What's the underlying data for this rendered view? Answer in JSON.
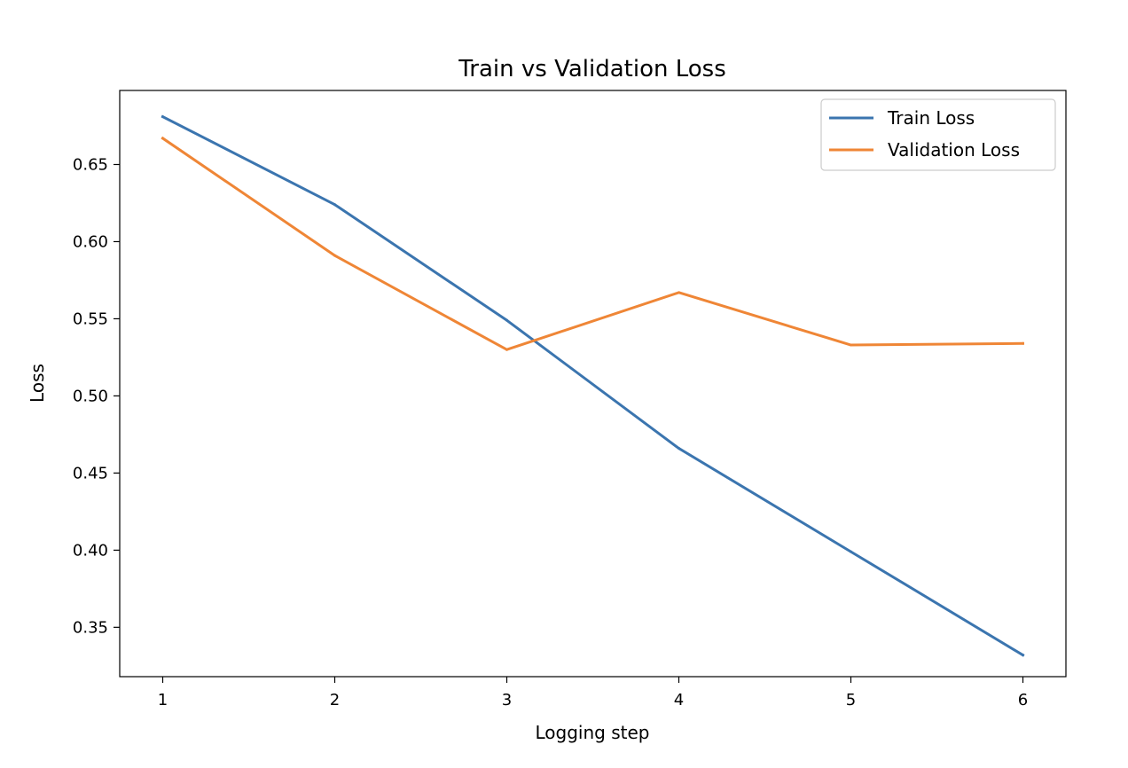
{
  "chart_data": {
    "type": "line",
    "title": "Train vs Validation Loss",
    "xlabel": "Logging step",
    "ylabel": "Loss",
    "x": [
      1,
      2,
      3,
      4,
      5,
      6
    ],
    "xlim": [
      0.75,
      6.25
    ],
    "ylim": [
      0.318,
      0.698
    ],
    "xticks": [
      "1",
      "2",
      "3",
      "4",
      "5",
      "6"
    ],
    "yticks": [
      "0.35",
      "0.40",
      "0.45",
      "0.50",
      "0.55",
      "0.60",
      "0.65"
    ],
    "series": [
      {
        "name": "Train Loss",
        "color": "#3b75af",
        "values": [
          0.681,
          0.624,
          0.549,
          0.466,
          0.399,
          0.332
        ]
      },
      {
        "name": "Validation Loss",
        "color": "#ef8636",
        "values": [
          0.667,
          0.591,
          0.53,
          0.567,
          0.533,
          0.534
        ]
      }
    ],
    "grid": false,
    "legend_position": "top-right"
  }
}
